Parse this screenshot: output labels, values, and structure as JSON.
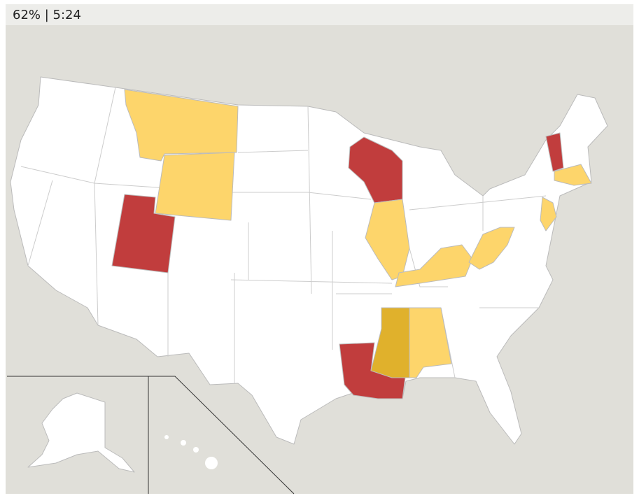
{
  "status": "62% | 5:24"
}
